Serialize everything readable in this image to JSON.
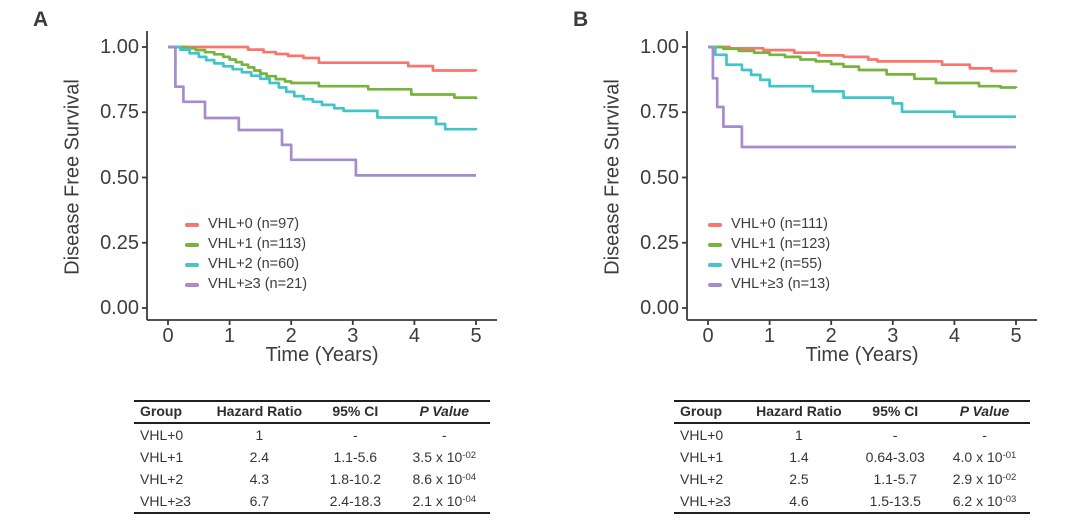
{
  "chart_data": [
    {
      "type": "line",
      "label": "A",
      "ylabel": "Disease Free Survival",
      "xlabel": "Time (Years)",
      "xlim": [
        0,
        5
      ],
      "ylim": [
        0.0,
        1.0
      ],
      "grid": false,
      "legend_position": "inside-lower-left",
      "yticks": [
        {
          "v": 1.0,
          "label": "1.00"
        },
        {
          "v": 0.75,
          "label": "0.75"
        },
        {
          "v": 0.5,
          "label": "0.50"
        },
        {
          "v": 0.25,
          "label": "0.25"
        },
        {
          "v": 0.0,
          "label": "0.00"
        }
      ],
      "xticks": [
        {
          "v": 0,
          "label": "0"
        },
        {
          "v": 1,
          "label": "1"
        },
        {
          "v": 2,
          "label": "2"
        },
        {
          "v": 3,
          "label": "3"
        },
        {
          "v": 4,
          "label": "4"
        },
        {
          "v": 5,
          "label": "5"
        }
      ],
      "series": [
        {
          "name": "VHL+0 (n=97)",
          "color": "#F8766D",
          "steps": [
            [
              0,
              1.0
            ],
            [
              1.3,
              0.99
            ],
            [
              1.55,
              0.98
            ],
            [
              1.75,
              0.973
            ],
            [
              1.95,
              0.966
            ],
            [
              2.2,
              0.958
            ],
            [
              2.45,
              0.94
            ],
            [
              3.9,
              0.927
            ],
            [
              4.3,
              0.91
            ],
            [
              5,
              0.908
            ]
          ]
        },
        {
          "name": "VHL+1 (n=113)",
          "color": "#78B33E",
          "steps": [
            [
              0,
              1.0
            ],
            [
              0.3,
              0.995
            ],
            [
              0.45,
              0.988
            ],
            [
              0.6,
              0.98
            ],
            [
              0.75,
              0.972
            ],
            [
              0.9,
              0.962
            ],
            [
              1.0,
              0.952
            ],
            [
              1.1,
              0.942
            ],
            [
              1.2,
              0.932
            ],
            [
              1.3,
              0.922
            ],
            [
              1.4,
              0.91
            ],
            [
              1.5,
              0.898
            ],
            [
              1.6,
              0.888
            ],
            [
              1.75,
              0.877
            ],
            [
              1.9,
              0.868
            ],
            [
              2.0,
              0.862
            ],
            [
              2.45,
              0.85
            ],
            [
              3.25,
              0.838
            ],
            [
              3.95,
              0.818
            ],
            [
              4.65,
              0.806
            ],
            [
              5,
              0.8
            ]
          ]
        },
        {
          "name": "VHL+2 (n=60)",
          "color": "#41C5C8",
          "steps": [
            [
              0,
              1.0
            ],
            [
              0.2,
              0.99
            ],
            [
              0.35,
              0.976
            ],
            [
              0.5,
              0.962
            ],
            [
              0.62,
              0.95
            ],
            [
              0.75,
              0.937
            ],
            [
              0.9,
              0.926
            ],
            [
              1.05,
              0.915
            ],
            [
              1.2,
              0.903
            ],
            [
              1.35,
              0.89
            ],
            [
              1.5,
              0.878
            ],
            [
              1.65,
              0.862
            ],
            [
              1.8,
              0.845
            ],
            [
              1.92,
              0.828
            ],
            [
              2.05,
              0.812
            ],
            [
              2.2,
              0.8
            ],
            [
              2.35,
              0.79
            ],
            [
              2.5,
              0.778
            ],
            [
              2.7,
              0.765
            ],
            [
              2.85,
              0.755
            ],
            [
              3.4,
              0.73
            ],
            [
              4.35,
              0.705
            ],
            [
              4.5,
              0.685
            ],
            [
              5,
              0.682
            ]
          ]
        },
        {
          "name": "VHL+≥3 (n=21)",
          "color": "#A78BCB",
          "steps": [
            [
              0,
              1.0
            ],
            [
              0.12,
              0.848
            ],
            [
              0.25,
              0.79
            ],
            [
              0.6,
              0.728
            ],
            [
              1.15,
              0.682
            ],
            [
              1.85,
              0.625
            ],
            [
              2.0,
              0.568
            ],
            [
              3.05,
              0.508
            ],
            [
              5,
              0.508
            ]
          ]
        }
      ],
      "table": {
        "headers": [
          "Group",
          "Hazard Ratio",
          "95% CI",
          "P Value"
        ],
        "rows": [
          {
            "group": "VHL+0",
            "hr": "1",
            "ci": "-",
            "p": {
              "text": "-",
              "exp": ""
            }
          },
          {
            "group": "VHL+1",
            "hr": "2.4",
            "ci": "1.1-5.6",
            "p": {
              "text": "3.5 x 10",
              "exp": "-02"
            }
          },
          {
            "group": "VHL+2",
            "hr": "4.3",
            "ci": "1.8-10.2",
            "p": {
              "text": "8.6 x 10",
              "exp": "-04"
            }
          },
          {
            "group": "VHL+≥3",
            "hr": "6.7",
            "ci": "2.4-18.3",
            "p": {
              "text": "2.1 x 10",
              "exp": "-04"
            }
          }
        ]
      }
    },
    {
      "type": "line",
      "label": "B",
      "ylabel": "Disease Free Survival",
      "xlabel": "Time (Years)",
      "xlim": [
        0,
        5
      ],
      "ylim": [
        0.0,
        1.0
      ],
      "grid": false,
      "legend_position": "inside-lower-left",
      "yticks": [
        {
          "v": 1.0,
          "label": "1.00"
        },
        {
          "v": 0.75,
          "label": "0.75"
        },
        {
          "v": 0.5,
          "label": "0.50"
        },
        {
          "v": 0.25,
          "label": "0.25"
        },
        {
          "v": 0.0,
          "label": "0.00"
        }
      ],
      "xticks": [
        {
          "v": 0,
          "label": "0"
        },
        {
          "v": 1,
          "label": "1"
        },
        {
          "v": 2,
          "label": "2"
        },
        {
          "v": 3,
          "label": "3"
        },
        {
          "v": 4,
          "label": "4"
        },
        {
          "v": 5,
          "label": "5"
        }
      ],
      "series": [
        {
          "name": "VHL+0 (n=111)",
          "color": "#F8766D",
          "steps": [
            [
              0,
              1.0
            ],
            [
              0.35,
              0.995
            ],
            [
              0.9,
              0.988
            ],
            [
              1.4,
              0.978
            ],
            [
              1.8,
              0.968
            ],
            [
              2.2,
              0.962
            ],
            [
              2.6,
              0.952
            ],
            [
              2.75,
              0.945
            ],
            [
              3.8,
              0.932
            ],
            [
              4.25,
              0.918
            ],
            [
              4.6,
              0.908
            ],
            [
              5,
              0.905
            ]
          ]
        },
        {
          "name": "VHL+1 (n=123)",
          "color": "#78B33E",
          "steps": [
            [
              0,
              1.0
            ],
            [
              0.25,
              0.993
            ],
            [
              0.5,
              0.985
            ],
            [
              0.75,
              0.978
            ],
            [
              1.0,
              0.97
            ],
            [
              1.25,
              0.962
            ],
            [
              1.5,
              0.952
            ],
            [
              1.75,
              0.945
            ],
            [
              2.0,
              0.935
            ],
            [
              2.2,
              0.925
            ],
            [
              2.45,
              0.912
            ],
            [
              2.9,
              0.895
            ],
            [
              3.35,
              0.878
            ],
            [
              3.7,
              0.862
            ],
            [
              4.4,
              0.85
            ],
            [
              4.75,
              0.845
            ],
            [
              5,
              0.843
            ]
          ]
        },
        {
          "name": "VHL+2 (n=55)",
          "color": "#41C5C8",
          "steps": [
            [
              0,
              1.0
            ],
            [
              0.12,
              0.97
            ],
            [
              0.3,
              0.932
            ],
            [
              0.55,
              0.912
            ],
            [
              0.7,
              0.893
            ],
            [
              0.85,
              0.874
            ],
            [
              1.0,
              0.85
            ],
            [
              1.7,
              0.83
            ],
            [
              2.2,
              0.806
            ],
            [
              3.0,
              0.784
            ],
            [
              3.15,
              0.752
            ],
            [
              4.0,
              0.733
            ],
            [
              5,
              0.733
            ]
          ]
        },
        {
          "name": "VHL+≥3 (n=13)",
          "color": "#A78BCB",
          "steps": [
            [
              0,
              1.0
            ],
            [
              0.08,
              0.88
            ],
            [
              0.15,
              0.77
            ],
            [
              0.25,
              0.695
            ],
            [
              0.55,
              0.617
            ],
            [
              5,
              0.617
            ]
          ]
        }
      ],
      "table": {
        "headers": [
          "Group",
          "Hazard Ratio",
          "95% CI",
          "P Value"
        ],
        "rows": [
          {
            "group": "VHL+0",
            "hr": "1",
            "ci": "-",
            "p": {
              "text": "-",
              "exp": ""
            }
          },
          {
            "group": "VHL+1",
            "hr": "1.4",
            "ci": "0.64-3.03",
            "p": {
              "text": "4.0 x 10",
              "exp": "-01"
            }
          },
          {
            "group": "VHL+2",
            "hr": "2.5",
            "ci": "1.1-5.7",
            "p": {
              "text": "2.9 x 10",
              "exp": "-02"
            }
          },
          {
            "group": "VHL+≥3",
            "hr": "4.6",
            "ci": "1.5-13.5",
            "p": {
              "text": "6.2 x 10",
              "exp": "-03"
            }
          }
        ]
      }
    }
  ]
}
